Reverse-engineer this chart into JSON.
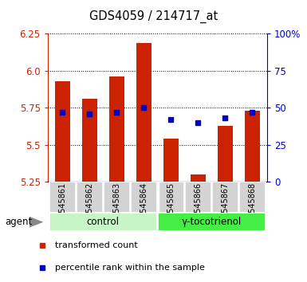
{
  "title": "GDS4059 / 214717_at",
  "samples": [
    "GSM545861",
    "GSM545862",
    "GSM545863",
    "GSM545864",
    "GSM545865",
    "GSM545866",
    "GSM545867",
    "GSM545868"
  ],
  "red_values": [
    5.93,
    5.81,
    5.96,
    6.19,
    5.54,
    5.3,
    5.63,
    5.73
  ],
  "blue_values": [
    47,
    46,
    47,
    50,
    42,
    40,
    43,
    47
  ],
  "ymin": 5.25,
  "ymax": 6.25,
  "yticks_left": [
    5.25,
    5.5,
    5.75,
    6.0,
    6.25
  ],
  "yticks_right": [
    0,
    25,
    50,
    75,
    100
  ],
  "groups": [
    {
      "label": "control",
      "indices": [
        0,
        1,
        2,
        3
      ],
      "color": "#c8f5c8"
    },
    {
      "label": "γ-tocotrienol",
      "indices": [
        4,
        5,
        6,
        7
      ],
      "color": "#44ee44"
    }
  ],
  "bar_color": "#cc2200",
  "dot_color": "#0000cc",
  "bar_bottom": 5.25,
  "left_axis_color": "#cc2200",
  "right_axis_color": "#0000cc",
  "agent_label": "agent",
  "legend_items": [
    "transformed count",
    "percentile rank within the sample"
  ],
  "bar_width": 0.55
}
